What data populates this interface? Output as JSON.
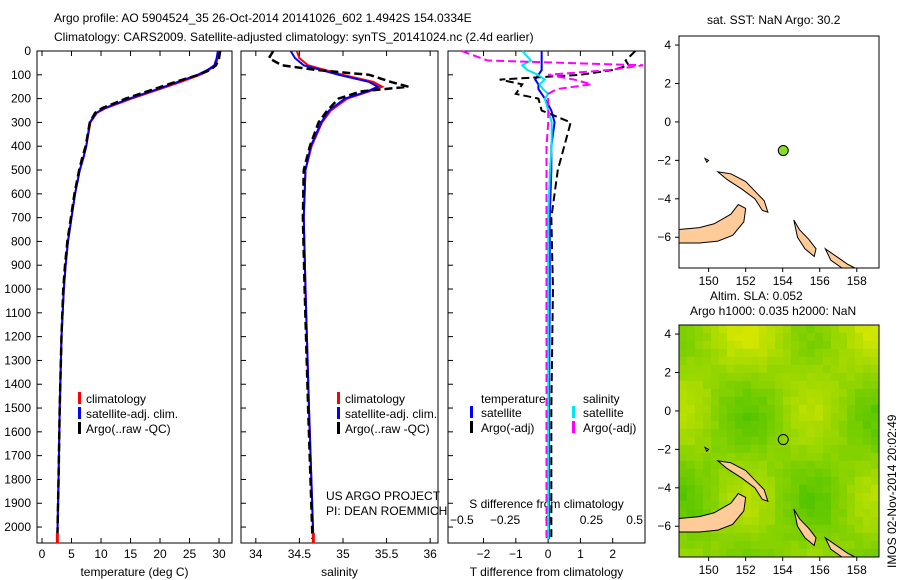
{
  "title_line1": "Argo profile: AO 5904524_35 26-Oct-2014 20141026_602 1.4942S 154.0334E",
  "title_line2": "Climatology: CARS2009. Satellite-adjusted climatology: synTS_20141024.nc (2.4d earlier)",
  "credit_line1": "US ARGO PROJECT",
  "credit_line2": "PI: DEAN ROEMMICH",
  "timestamp": "IMOS 02-Nov-2014 20:02:49",
  "colors": {
    "climatology": "#ff0000",
    "satellite": "#0000ff",
    "argo": "#000000",
    "sal_satellite": "#00e5ee",
    "sal_argo": "#ff00ff",
    "land": "#ffcc99"
  },
  "chart_data": [
    {
      "type": "line",
      "name": "temperature",
      "xlabel": "temperature (deg C)",
      "ylabel": "depth",
      "xlim": [
        -0.85,
        32.2
      ],
      "ylim": [
        2160,
        0
      ],
      "xticks": [
        0,
        5,
        10,
        15,
        20,
        25,
        30
      ],
      "yticks": [
        0,
        100,
        200,
        300,
        400,
        500,
        600,
        700,
        800,
        900,
        1000,
        1100,
        1200,
        1300,
        1400,
        1500,
        1600,
        1700,
        1800,
        1900,
        2000
      ],
      "legend": [
        "climatology",
        "satellite-adj. clim.",
        "Argo(..raw -QC)"
      ],
      "depth": [
        0,
        30,
        60,
        80,
        100,
        130,
        160,
        200,
        240,
        260,
        300,
        400,
        450,
        500,
        600,
        700,
        800,
        900,
        1000,
        1200,
        1500,
        1800,
        2050
      ],
      "series": [
        {
          "name": "climatology",
          "values": [
            30,
            29.8,
            29.4,
            28.3,
            26.8,
            23.5,
            20,
            15.2,
            10.8,
            9.3,
            8.2,
            7.5,
            7,
            6.4,
            5.6,
            5,
            4.4,
            4,
            3.7,
            3.3,
            3,
            2.8,
            2.6
          ]
        },
        {
          "name": "satellite-adj. clim.",
          "values": [
            29.8,
            29.6,
            29.2,
            28,
            26.4,
            23,
            19.6,
            14.8,
            10.6,
            9.2,
            8.1,
            7.5,
            7,
            6.4,
            5.6,
            5,
            4.4,
            4,
            3.7,
            3.3,
            3,
            2.8,
            2.6
          ]
        },
        {
          "name": "Argo(..raw -QC)",
          "values": [
            30.2,
            30,
            29.5,
            28.5,
            26.5,
            22.6,
            19,
            14.2,
            10.2,
            9,
            8.1,
            7.4,
            6.8,
            6.3,
            5.5,
            4.9,
            4.3,
            3.9,
            3.6,
            3.3,
            3,
            2.8,
            2.6
          ]
        }
      ]
    },
    {
      "type": "line",
      "name": "salinity",
      "xlabel": "salinity",
      "xlim": [
        33.83,
        36.09
      ],
      "ylim": [
        2160,
        0
      ],
      "xticks": [
        34,
        34.5,
        35,
        35.5,
        36
      ],
      "legend": [
        "climatology",
        "satellite-adj. clim.",
        "Argo(..raw -QC)"
      ],
      "depth": [
        0,
        30,
        60,
        80,
        100,
        130,
        150,
        170,
        200,
        250,
        300,
        400,
        500,
        700,
        1000,
        1500,
        2050
      ],
      "series": [
        {
          "name": "climatology",
          "values": [
            34.47,
            34.5,
            34.6,
            34.8,
            35.0,
            35.35,
            35.45,
            35.3,
            35.05,
            34.86,
            34.76,
            34.64,
            34.57,
            34.55,
            34.57,
            34.61,
            34.66
          ]
        },
        {
          "name": "satellite-adj. clim.",
          "values": [
            34.4,
            34.45,
            34.55,
            34.75,
            34.95,
            35.3,
            35.4,
            35.28,
            35.02,
            34.84,
            34.75,
            34.63,
            34.57,
            34.55,
            34.57,
            34.61,
            34.66
          ]
        },
        {
          "name": "Argo(..raw -QC)",
          "values": [
            34.2,
            34.15,
            34.3,
            34.7,
            35.3,
            35.55,
            35.75,
            35.2,
            34.95,
            34.82,
            34.72,
            34.62,
            34.55,
            34.54,
            34.56,
            34.6,
            34.65
          ]
        }
      ]
    },
    {
      "type": "line",
      "name": "difference",
      "xlabel": "T difference from climatology",
      "x2label": "S difference from climatology",
      "xlim": [
        -3.1,
        3.0
      ],
      "x2lim": [
        -0.58,
        0.56
      ],
      "xticks": [
        -2,
        -1,
        0,
        1,
        2
      ],
      "x2ticks": [
        -0.5,
        -0.25,
        0,
        0.25,
        0.5
      ],
      "legend_temperature": {
        "title": "temperature",
        "items": [
          "satellite",
          "Argo(-adj)"
        ]
      },
      "legend_salinity": {
        "title": "salinity",
        "items": [
          "satellite",
          "Argo(-adj)"
        ]
      },
      "depth": [
        0,
        40,
        60,
        80,
        100,
        120,
        140,
        160,
        180,
        200,
        250,
        300,
        400,
        500,
        700,
        1000,
        1500,
        2050
      ],
      "series": [
        {
          "name": "T satellite",
          "axis": "T",
          "values": [
            -0.2,
            -0.2,
            -0.2,
            -0.2,
            -0.3,
            -0.4,
            -0.3,
            -0.3,
            -0.2,
            -0.1,
            0.1,
            0.2,
            0.1,
            0.1,
            0.05,
            0.05,
            0.03,
            0.03
          ]
        },
        {
          "name": "T Argo(-adj)",
          "axis": "T",
          "values": [
            2.7,
            2.4,
            2.5,
            2.0,
            1.0,
            -1.5,
            -0.8,
            -0.9,
            -1.0,
            -0.3,
            -0.2,
            0.7,
            0.5,
            0.3,
            0.1,
            0.15,
            0.1,
            0.1
          ]
        },
        {
          "name": "S satellite",
          "axis": "S",
          "values": [
            -0.15,
            -0.1,
            -0.15,
            -0.12,
            -0.06,
            -0.02,
            -0.05,
            -0.03,
            0.0,
            -0.02,
            0.0,
            0.02,
            0.02,
            0.01,
            0.0,
            0.0,
            0.0,
            0.0
          ]
        },
        {
          "name": "S Argo(-adj)",
          "axis": "S",
          "values": [
            -0.5,
            -0.35,
            0.55,
            0.35,
            0.0,
            0.15,
            0.25,
            0.05,
            0.0,
            0.0,
            0.0,
            0.0,
            -0.01,
            -0.01,
            -0.01,
            -0.01,
            -0.01,
            -0.01
          ]
        }
      ]
    },
    {
      "type": "heatmap",
      "name": "sst-map",
      "title": "sat. SST: NaN Argo: 30.2",
      "xlim": [
        148.4,
        159.2
      ],
      "ylim": [
        -7.6,
        4.47
      ],
      "xticks": [
        150,
        152,
        154,
        156,
        158
      ],
      "yticks": [
        -6,
        -4,
        -2,
        0,
        2,
        4
      ],
      "argo_position": [
        154.03,
        -1.49
      ]
    },
    {
      "type": "heatmap",
      "name": "sla-map",
      "title_line1": "Altim. SLA: 0.052",
      "title_line2": "Argo h1000: 0.035 h2000: NaN",
      "xlim": [
        148.4,
        159.2
      ],
      "ylim": [
        -7.6,
        4.47
      ],
      "xticks": [
        150,
        152,
        154,
        156,
        158
      ],
      "yticks": [
        -6,
        -4,
        -2,
        0,
        2,
        4
      ],
      "argo_position": [
        154.03,
        -1.49
      ]
    }
  ]
}
